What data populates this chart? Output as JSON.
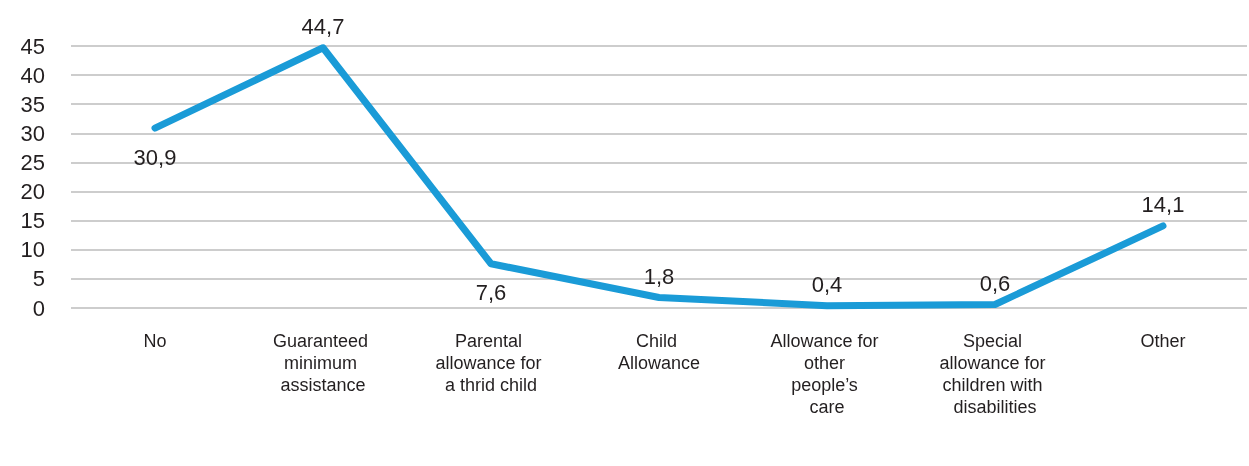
{
  "chart_data": {
    "type": "line",
    "categories": [
      "No",
      "Guaranteed minimum assistance",
      "Parental allowance for a thrid child",
      "Child Allowance",
      "Allowance for other people’s care",
      "Special allowance for children with disabilities",
      "Other"
    ],
    "values": [
      30.9,
      44.7,
      7.6,
      1.8,
      0.4,
      0.6,
      14.1
    ],
    "value_labels": [
      "30,9",
      "44,7",
      "7,6",
      "1,8",
      "0,4",
      "0,6",
      "14,1"
    ],
    "color": "#1a9bd7",
    "ylim": [
      0,
      45
    ],
    "yticks": [
      0,
      5,
      10,
      15,
      20,
      25,
      30,
      35,
      40,
      45
    ],
    "grid": "y",
    "marker": "none",
    "line_style": "solid"
  }
}
